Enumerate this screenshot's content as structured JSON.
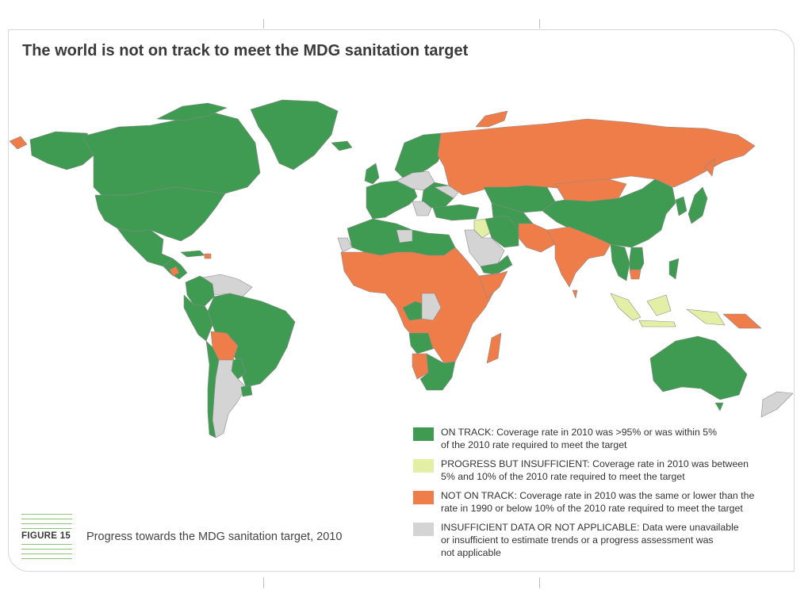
{
  "title": "The world is not on track to meet the MDG sanitation target",
  "colors": {
    "on_track": "#3f9a52",
    "progress_insufficient": "#e4efa6",
    "not_on_track": "#ee7d4a",
    "insufficient_data": "#d4d4d4",
    "border": "#8a8a8a"
  },
  "legend": [
    {
      "key": "on_track",
      "color": "#3f9a52",
      "line1": "ON TRACK: Coverage rate in 2010 was >95% or was within 5%",
      "line2": "of the 2010 rate required to meet the target",
      "line3": ""
    },
    {
      "key": "progress_insufficient",
      "color": "#e4efa6",
      "line1": "PROGRESS BUT INSUFFICIENT: Coverage rate in 2010 was between",
      "line2": "5% and 10% of the 2010 rate required to meet the target",
      "line3": ""
    },
    {
      "key": "not_on_track",
      "color": "#ee7d4a",
      "line1": "NOT ON TRACK: Coverage rate in 2010 was the same or lower than the",
      "line2": "rate in 1990 or below 10% of the 2010 rate required to meet the target",
      "line3": ""
    },
    {
      "key": "insufficient_data",
      "color": "#d4d4d4",
      "line1": "INSUFFICIENT DATA OR NOT APPLICABLE: Data were unavailable",
      "line2": "or insufficient to estimate trends or a progress assessment was",
      "line3": "not applicable"
    }
  ],
  "figure_label": "FIGURE 15",
  "caption": "Progress towards the MDG sanitation target, 2010"
}
